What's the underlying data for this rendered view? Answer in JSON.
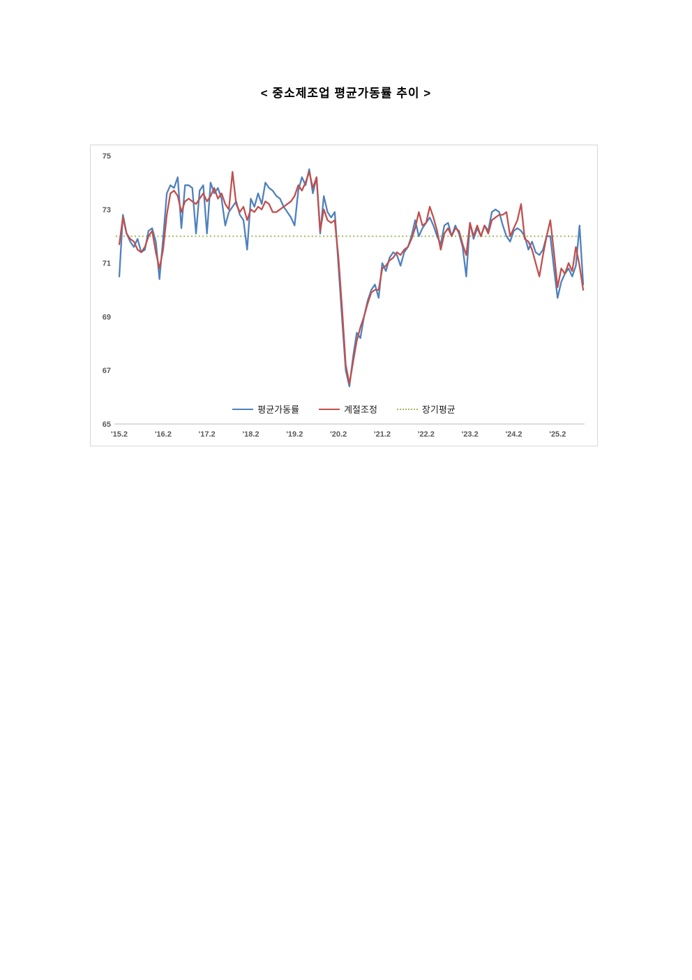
{
  "title": "<  중소제조업  평균가동률  추이  >",
  "chart_data": {
    "type": "line",
    "title": "중소제조업 평균가동률 추이",
    "x_start": "2015-02",
    "x_end": "2025-09",
    "x_frequency": "monthly",
    "x_tick_labels": [
      "'15.2",
      "'16.2",
      "'17.2",
      "'18.2",
      "'19.2",
      "'20.2",
      "'21.2",
      "'22.2",
      "'23.2",
      "'24.2",
      "'25.2"
    ],
    "x_tick_indices": [
      0,
      12,
      24,
      36,
      48,
      60,
      72,
      84,
      96,
      108,
      120
    ],
    "ylim": [
      65,
      75
    ],
    "y_ticks": [
      65,
      67,
      69,
      71,
      73,
      75
    ],
    "grid": false,
    "legend_position": "bottom-center-inside",
    "long_term_average": 72.0,
    "colors": {
      "avg_utilization": "#4F81BD",
      "seasonal_adjusted": "#C0504D",
      "long_term_avg": "#9BBB59",
      "axis_text": "#595959",
      "axis_line": "#c8c8c8"
    },
    "series": [
      {
        "name": "평균가동률",
        "color": "#4F81BD",
        "style": "solid",
        "values": [
          70.5,
          72.8,
          72.1,
          71.8,
          71.6,
          71.9,
          71.4,
          71.5,
          72.2,
          72.3,
          71.8,
          70.4,
          71.9,
          73.6,
          73.9,
          73.8,
          74.2,
          72.3,
          73.9,
          73.9,
          73.8,
          72.1,
          73.7,
          73.9,
          72.1,
          74.0,
          73.6,
          73.8,
          73.4,
          72.4,
          72.9,
          73.1,
          73.3,
          72.8,
          72.6,
          71.5,
          73.4,
          73.1,
          73.6,
          73.2,
          74.0,
          73.8,
          73.7,
          73.5,
          73.4,
          73.1,
          72.9,
          72.7,
          72.4,
          73.7,
          74.2,
          73.9,
          74.5,
          73.6,
          74.2,
          72.1,
          73.5,
          72.9,
          72.7,
          72.9,
          70.9,
          68.9,
          67.0,
          66.4,
          67.5,
          68.4,
          68.2,
          69.0,
          69.6,
          70.0,
          70.2,
          69.7,
          71.0,
          70.7,
          71.2,
          71.4,
          71.3,
          70.9,
          71.4,
          71.6,
          72.0,
          72.6,
          72.0,
          72.3,
          72.5,
          72.7,
          72.4,
          72.0,
          71.7,
          72.4,
          72.5,
          72.0,
          72.4,
          72.1,
          71.6,
          70.5,
          72.5,
          71.9,
          72.3,
          72.0,
          72.4,
          72.2,
          72.9,
          73.0,
          72.9,
          72.4,
          72.0,
          71.8,
          72.2,
          72.3,
          72.2,
          72.0,
          71.5,
          71.8,
          71.4,
          71.3,
          71.5,
          72.0,
          72.0,
          70.8,
          69.7,
          70.3,
          70.6,
          70.8,
          70.5,
          70.9,
          72.4,
          70.2
        ]
      },
      {
        "name": "계절조정",
        "color": "#C0504D",
        "style": "solid",
        "values": [
          71.7,
          72.7,
          72.1,
          71.9,
          71.8,
          71.5,
          71.4,
          71.6,
          72.0,
          72.2,
          71.4,
          70.8,
          71.5,
          72.8,
          73.6,
          73.7,
          73.5,
          72.9,
          73.3,
          73.4,
          73.3,
          73.2,
          73.4,
          73.6,
          73.3,
          73.5,
          73.8,
          73.4,
          73.6,
          73.2,
          73.0,
          74.4,
          73.2,
          72.9,
          73.1,
          72.6,
          73.0,
          72.9,
          73.1,
          73.0,
          73.3,
          73.2,
          72.9,
          72.9,
          73.0,
          73.1,
          73.2,
          73.3,
          73.5,
          73.9,
          73.7,
          74.0,
          74.4,
          73.8,
          74.2,
          72.2,
          73.0,
          72.6,
          72.5,
          72.6,
          71.2,
          69.3,
          67.2,
          66.5,
          67.3,
          68.1,
          68.6,
          69.0,
          69.5,
          69.9,
          70.0,
          70.0,
          70.8,
          70.9,
          71.1,
          71.2,
          71.4,
          71.3,
          71.5,
          71.6,
          71.9,
          72.3,
          72.9,
          72.4,
          72.5,
          73.1,
          72.7,
          72.2,
          71.5,
          72.1,
          72.3,
          72.0,
          72.3,
          72.2,
          71.7,
          71.3,
          72.5,
          72.0,
          72.4,
          72.0,
          72.4,
          72.1,
          72.6,
          72.7,
          72.8,
          72.8,
          72.9,
          72.0,
          72.3,
          72.6,
          73.2,
          71.9,
          71.8,
          71.5,
          71.0,
          70.5,
          71.3,
          72.0,
          72.6,
          71.4,
          70.1,
          70.8,
          70.6,
          71.0,
          70.7,
          71.6,
          70.9,
          70.0
        ]
      },
      {
        "name": "장기평균",
        "color": "#9BBB59",
        "style": "dotted",
        "constant_value": 72.0
      }
    ]
  }
}
